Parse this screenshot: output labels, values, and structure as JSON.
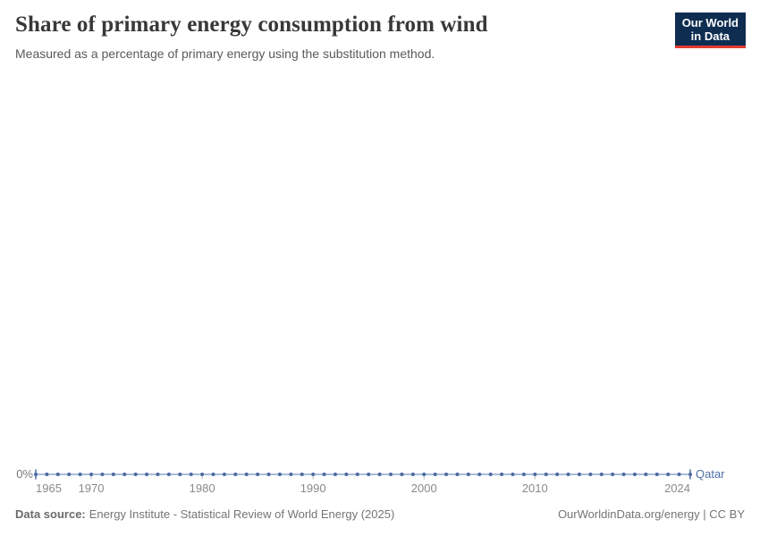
{
  "header": {
    "title": "Share of primary energy consumption from wind",
    "subtitle": "Measured as a percentage of primary energy using the substitution method.",
    "logo": {
      "line1": "Our World",
      "line2": "in Data",
      "bg_color": "#0e2d51",
      "accent_color": "#e23b30"
    }
  },
  "chart_data": {
    "type": "line",
    "title": "Share of primary energy consumption from wind",
    "subtitle": "Measured as a percentage of primary energy using the substitution method.",
    "xlabel": "",
    "ylabel": "",
    "y_tick_label": "0%",
    "ylim": [
      0,
      0
    ],
    "grid": false,
    "legend_position": "end-of-line",
    "x": [
      1965,
      1966,
      1967,
      1968,
      1969,
      1970,
      1971,
      1972,
      1973,
      1974,
      1975,
      1976,
      1977,
      1978,
      1979,
      1980,
      1981,
      1982,
      1983,
      1984,
      1985,
      1986,
      1987,
      1988,
      1989,
      1990,
      1991,
      1992,
      1993,
      1994,
      1995,
      1996,
      1997,
      1998,
      1999,
      2000,
      2001,
      2002,
      2003,
      2004,
      2005,
      2006,
      2007,
      2008,
      2009,
      2010,
      2011,
      2012,
      2013,
      2014,
      2015,
      2016,
      2017,
      2018,
      2019,
      2020,
      2021,
      2022,
      2023,
      2024
    ],
    "x_ticks": [
      1965,
      1970,
      1980,
      1990,
      2000,
      2010,
      2024
    ],
    "series": [
      {
        "name": "Qatar",
        "values": [
          0,
          0,
          0,
          0,
          0,
          0,
          0,
          0,
          0,
          0,
          0,
          0,
          0,
          0,
          0,
          0,
          0,
          0,
          0,
          0,
          0,
          0,
          0,
          0,
          0,
          0,
          0,
          0,
          0,
          0,
          0,
          0,
          0,
          0,
          0,
          0,
          0,
          0,
          0,
          0,
          0,
          0,
          0,
          0,
          0,
          0,
          0,
          0,
          0,
          0,
          0,
          0,
          0,
          0,
          0,
          0,
          0,
          0,
          0,
          0
        ]
      }
    ],
    "line_color": "#a9bdda",
    "marker_color": "#4a69a2",
    "entity_label_color": "#4e6ea7",
    "axis_tick_color": "#b5b5b5"
  },
  "footer": {
    "source_label": "Data source:",
    "source_text": "Energy Institute - Statistical Review of World Energy (2025)",
    "credit": "OurWorldinData.org/energy | CC BY"
  }
}
